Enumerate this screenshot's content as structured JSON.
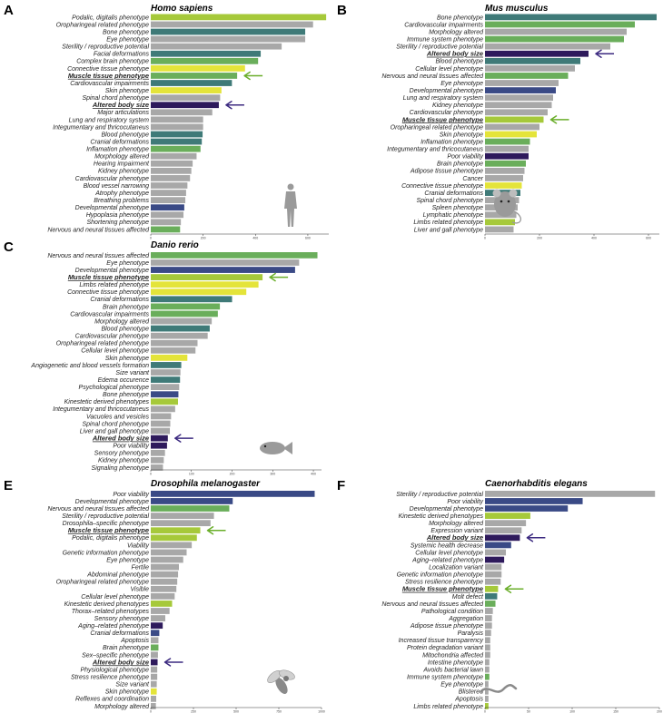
{
  "colors": {
    "gray": "#a8a8a8",
    "teal": "#3f7a78",
    "green": "#6aae5b",
    "yellow": "#e4e43a",
    "lime": "#a6c93a",
    "navy": "#3a4a86",
    "dark": "#2e1a5c",
    "arrow_green": "#6aae2a",
    "arrow_purple": "#3c2a80",
    "hl_green_text": "#7cb83a",
    "hl_purple_text": "#2e1a5c"
  },
  "chart_data": [
    {
      "letter": "A",
      "title": "Homo sapiens",
      "type": "bar",
      "orientation": "horizontal",
      "xlim": [
        0,
        680
      ],
      "xticks": [
        0,
        200,
        400,
        600
      ],
      "organism_icon": "human-silhouette-icon",
      "categories": [
        "Podalic, digitalis phenotype",
        "Oropharingeal related phenotype",
        "Bone phenotype",
        "Eye phenotype",
        "Sterility / reproductive potential",
        "Facial deformations",
        "Complex brain phenotype",
        "Connective tissue phenotype",
        "Muscle tissue phenotype",
        "Cardiovascular impairments",
        "Skin phenotype",
        "Spinal chord phenotype",
        "Altered body size",
        "Major articulations",
        "Lung and respiratory system",
        "Integumentary and thricocutaneus",
        "Blood phenotype",
        "Cranial deformations",
        "Inflamation phenotype",
        "Morphology altered",
        "Hearing impairment",
        "Kidney phenotype",
        "Cardiovascular phenotype",
        "Blood vessel narrowing",
        "Atrophy phenotype",
        "Breathing problems",
        "Developmental phenotype",
        "Hypoplasia phenotype",
        "Shortening phenotype",
        "Nervous and neural tissues affected"
      ],
      "values": [
        670,
        620,
        590,
        590,
        500,
        420,
        410,
        360,
        330,
        310,
        270,
        265,
        260,
        235,
        200,
        200,
        198,
        195,
        190,
        175,
        160,
        155,
        150,
        140,
        135,
        132,
        128,
        125,
        115,
        112
      ],
      "colors": [
        "lime",
        "gray",
        "teal",
        "gray",
        "gray",
        "teal",
        "green",
        "yellow",
        "green",
        "teal",
        "yellow",
        "gray",
        "dark",
        "gray",
        "gray",
        "gray",
        "teal",
        "teal",
        "green",
        "gray",
        "gray",
        "gray",
        "gray",
        "gray",
        "gray",
        "gray",
        "navy",
        "gray",
        "gray",
        "green"
      ],
      "highlights": {
        "Muscle tissue phenotype": "green",
        "Altered body size": "purple"
      }
    },
    {
      "letter": "B",
      "title": "Mus musculus",
      "type": "bar",
      "orientation": "horizontal",
      "xlim": [
        0,
        640
      ],
      "xticks": [
        0,
        200,
        400,
        600
      ],
      "organism_icon": "mouse-icon",
      "categories": [
        "Bone phenotype",
        "Cardiovascular impairments",
        "Morphology altered",
        "Immune system phenotype",
        "Sterility / reproductive potential",
        "Altered body size",
        "Blood phenotype",
        "Cellular level phenotype",
        "Nervous and neural tissues affected",
        "Eye phenotype",
        "Developmental phenotype",
        "Lung and respiratory system",
        "Kidney phenotype",
        "Cardiovascular phenotype",
        "Muscle tissue phenotype",
        "Oropharingeal related phenotype",
        "Skin phenotype",
        "Inflamation phenotype",
        "Integumentary and thricocutaneus",
        "Poor viability",
        "Brain phenotype",
        "Adipose tissue phenotype",
        "Cancer",
        "Connective tissue phenotype",
        "Cranial deformations",
        "Spinal chord phenotype",
        "Spleen phenotype",
        "Lymphatic phenotype",
        "Limbs related phenotype",
        "Liver and gall phenotype"
      ],
      "values": [
        630,
        550,
        520,
        510,
        460,
        380,
        350,
        330,
        305,
        270,
        260,
        250,
        245,
        230,
        215,
        200,
        190,
        165,
        160,
        160,
        150,
        145,
        140,
        135,
        130,
        125,
        120,
        115,
        110,
        105
      ],
      "colors": [
        "teal",
        "green",
        "gray",
        "green",
        "gray",
        "dark",
        "teal",
        "gray",
        "green",
        "gray",
        "navy",
        "gray",
        "gray",
        "gray",
        "lime",
        "gray",
        "yellow",
        "green",
        "gray",
        "dark",
        "green",
        "gray",
        "gray",
        "yellow",
        "teal",
        "gray",
        "gray",
        "gray",
        "lime",
        "gray"
      ],
      "highlights": {
        "Altered body size": "purple",
        "Muscle tissue phenotype": "green"
      }
    },
    {
      "letter": "C",
      "title": "Danio rerio",
      "type": "bar",
      "orientation": "horizontal",
      "xlim": [
        0,
        420
      ],
      "xticks": [
        0,
        100,
        200,
        300,
        400
      ],
      "organism_icon": "fish-icon",
      "categories": [
        "Nervous and neural tissues affected",
        "Eye phenotype",
        "Developmental phenotype",
        "Muscle tissue phenotype",
        "Limbs related phenotype",
        "Connective tissue phenotype",
        "Cranial deformations",
        "Brain phenotype",
        "Cardiovascular impairments",
        "Morphology altered",
        "Blood phenotype",
        "Cardiovascular phenotype",
        "Oropharingeal related phenotype",
        "Cellular level phenotype",
        "Skin phenotype",
        "Angiogenetic and blood vessels formation",
        "Size variant",
        "Edema occurence",
        "Psychological phenotype",
        "Bone phenotype",
        "Kinestetic derived phenotypes",
        "Integumentary and thricocutaneus",
        "Vacuoles and vesicles",
        "Spinal chord phenotype",
        "Liver and gall phenotype",
        "Altered body size",
        "Poor viability",
        "Sensory phenotype",
        "Kidney phenotype",
        "Signaling phenotype"
      ],
      "values": [
        410,
        365,
        355,
        275,
        265,
        235,
        200,
        170,
        165,
        150,
        145,
        140,
        115,
        110,
        90,
        75,
        73,
        72,
        70,
        68,
        67,
        60,
        50,
        48,
        47,
        42,
        40,
        35,
        32,
        30
      ],
      "colors": [
        "green",
        "gray",
        "navy",
        "lime",
        "yellow",
        "yellow",
        "teal",
        "green",
        "green",
        "gray",
        "teal",
        "gray",
        "gray",
        "gray",
        "yellow",
        "teal",
        "gray",
        "teal",
        "gray",
        "navy",
        "lime",
        "gray",
        "gray",
        "gray",
        "gray",
        "dark",
        "dark",
        "gray",
        "gray",
        "gray"
      ],
      "highlights": {
        "Muscle tissue phenotype": "green",
        "Altered body size": "purple"
      }
    },
    {
      "letter": "E",
      "title": "Drosophila melanogaster",
      "type": "bar",
      "orientation": "horizontal",
      "xlim": [
        0,
        1000
      ],
      "xticks": [
        0,
        250,
        500,
        750,
        1000
      ],
      "organism_icon": "fly-icon",
      "categories": [
        "Poor viability",
        "Developmental phenotype",
        "Nervous and neural tissues affected",
        "Sterility / reproductive potential",
        "Drosophila–specific phenotype",
        "Muscle tissue phenotype",
        "Podalic, digitalis phenotype",
        "Viability",
        "Genetic information phenotype",
        "Eye phenotype",
        "Fertile",
        "Abdominal phenotype",
        "Oropharingeal related phenotype",
        "Visible",
        "Cellular level phenotype",
        "Kinestetic derived phenotypes",
        "Thorax–related phenotypes",
        "Sensory phenotype",
        "Aging–related phenotype",
        "Cranial deformations",
        "Apoptosis",
        "Brain phenotype",
        "Sex–specific phenotype",
        "Altered body size",
        "Physiological phenotype",
        "Stress resilience phenotype",
        "Size variant",
        "Skin phenotype",
        "Reflexes and coordination",
        "Morphology altered"
      ],
      "values": [
        960,
        480,
        460,
        370,
        350,
        290,
        270,
        240,
        210,
        190,
        165,
        160,
        155,
        150,
        140,
        125,
        110,
        85,
        70,
        50,
        45,
        45,
        42,
        40,
        38,
        38,
        35,
        35,
        32,
        30
      ],
      "colors": [
        "navy",
        "navy",
        "green",
        "gray",
        "gray",
        "lime",
        "lime",
        "gray",
        "gray",
        "gray",
        "gray",
        "gray",
        "gray",
        "gray",
        "gray",
        "lime",
        "gray",
        "gray",
        "dark",
        "navy",
        "gray",
        "green",
        "gray",
        "dark",
        "gray",
        "gray",
        "gray",
        "yellow",
        "gray",
        "gray"
      ],
      "highlights": {
        "Muscle tissue phenotype": "green",
        "Altered body size": "purple"
      }
    },
    {
      "letter": "F",
      "title": "Caenorhabditis elegans",
      "type": "bar",
      "orientation": "horizontal",
      "xlim": [
        0,
        200
      ],
      "xticks": [
        0,
        50,
        100,
        150,
        200
      ],
      "organism_icon": "worm-icon",
      "categories": [
        "Sterility / reproductive potential",
        "Poor viability",
        "Developmental phenotype",
        "Kinestetic derived phenotypes",
        "Morphology altered",
        "Expression variant",
        "Altered body size",
        "Systemic health decrease",
        "Cellular level phenotype",
        "Aging–related phenotype",
        "Localization variant",
        "Genetic information phenotype",
        "Stress resilience phenotype",
        "Muscle tissue phenotype",
        "Molt defect",
        "Nervous and neural tissues affected",
        "Pathological condition",
        "Aggregation",
        "Adipose tissue phenotype",
        "Paralysis",
        "Increased tissue transparency",
        "Protein degradation variant",
        "Mitochondria affected",
        "Intestine phenotype",
        "Avoids bacterial lawn",
        "Immune system phenotype",
        "Eye phenotype",
        "Blistered",
        "Apoptosis",
        "Limbs related phenotype"
      ],
      "values": [
        195,
        112,
        95,
        52,
        47,
        42,
        40,
        30,
        24,
        22,
        19,
        19,
        18,
        15,
        14,
        12,
        9,
        8,
        8,
        7,
        6,
        6,
        6,
        5,
        5,
        5,
        4,
        4,
        4,
        4
      ],
      "colors": [
        "gray",
        "navy",
        "navy",
        "lime",
        "gray",
        "gray",
        "dark",
        "navy",
        "gray",
        "dark",
        "gray",
        "gray",
        "gray",
        "lime",
        "teal",
        "green",
        "gray",
        "gray",
        "gray",
        "gray",
        "gray",
        "gray",
        "gray",
        "gray",
        "gray",
        "green",
        "gray",
        "gray",
        "gray",
        "lime"
      ],
      "highlights": {
        "Altered body size": "purple",
        "Muscle tissue phenotype": "green"
      }
    }
  ]
}
